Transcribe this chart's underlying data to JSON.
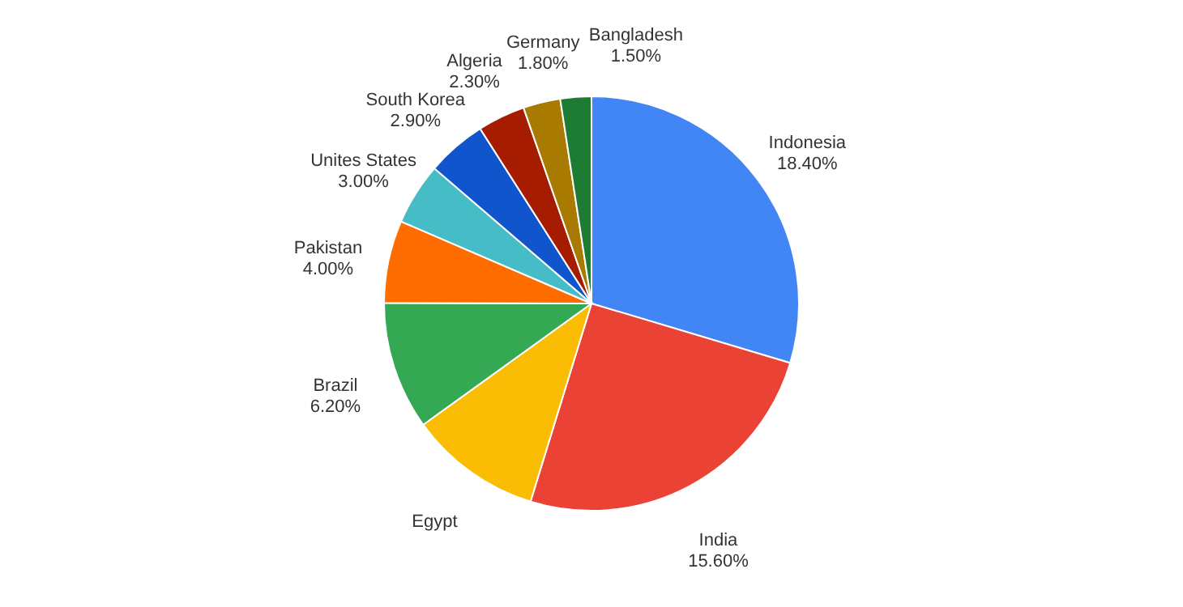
{
  "chart_data": {
    "type": "pie",
    "categories": [
      "Indonesia",
      "India",
      "Egypt",
      "Brazil",
      "Pakistan",
      "Unites States",
      "South Korea",
      "Algeria",
      "Germany",
      "Bangladesh"
    ],
    "values": [
      18.4,
      15.6,
      6.4,
      6.2,
      4.0,
      3.0,
      2.9,
      2.3,
      1.8,
      1.5
    ],
    "value_labels": [
      "18.40%",
      "15.60%",
      null,
      "6.20%",
      "4.00%",
      "3.00%",
      "2.90%",
      "2.30%",
      "1.80%",
      "1.50%"
    ],
    "colors": [
      "#4285f4",
      "#ea4335",
      "#fbbc04",
      "#34a853",
      "#ff6d01",
      "#46bdc6",
      "#1155cc",
      "#a61c00",
      "#a87b00",
      "#1e7b34"
    ]
  }
}
